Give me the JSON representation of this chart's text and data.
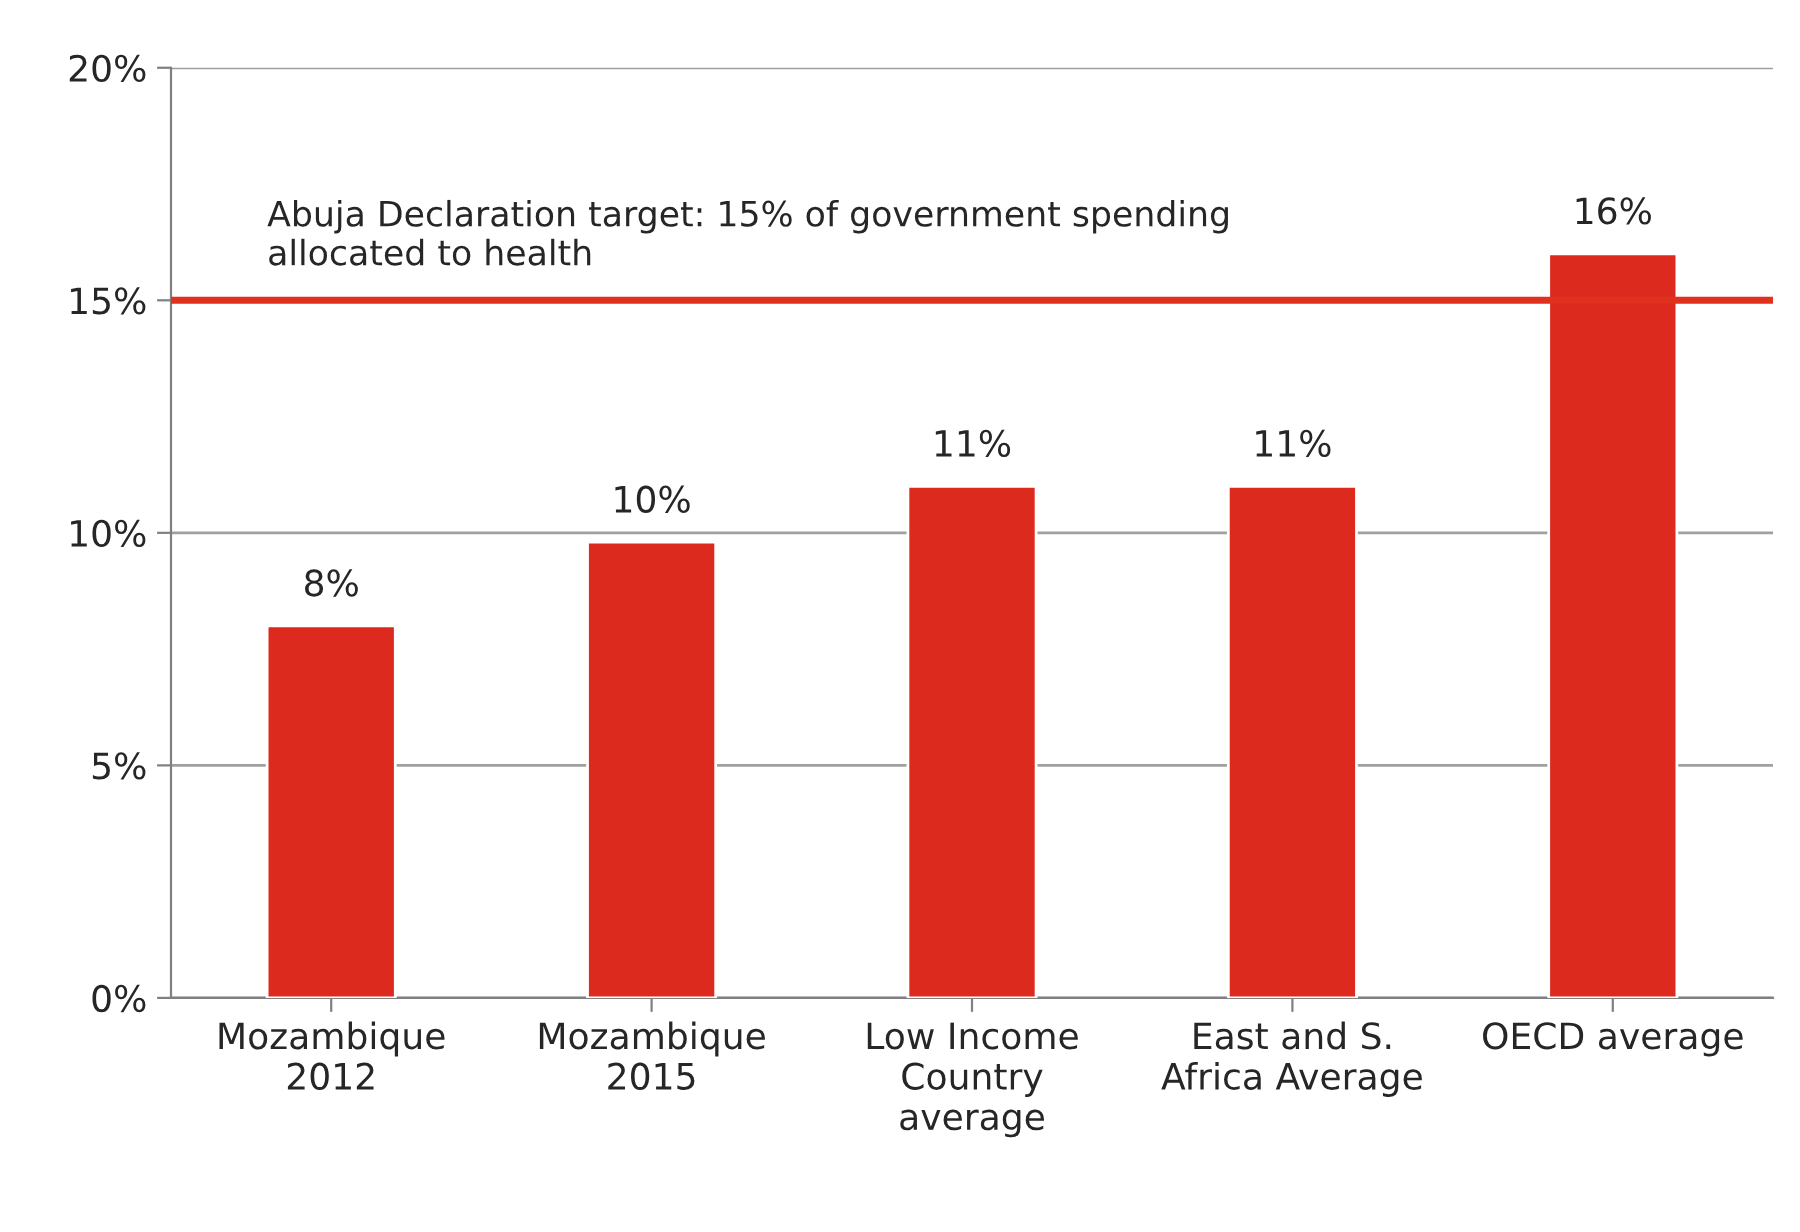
{
  "chart_data": {
    "type": "bar",
    "categories": [
      "Mozambique\n2012",
      "Mozambique\n2015",
      "Low Income\nCountry\naverage",
      "East and S.\nAfrica Average",
      "OECD average"
    ],
    "values": [
      8,
      9.8,
      11,
      11,
      16
    ],
    "value_labels": [
      "8%",
      "10%",
      "11%",
      "11%",
      "16%"
    ],
    "color": "#dc2a1f",
    "ylim": [
      0,
      20
    ],
    "yticks": [
      {
        "value": 0,
        "label": "0%"
      },
      {
        "value": 5,
        "label": "5%"
      },
      {
        "value": 10,
        "label": "10%"
      },
      {
        "value": 15,
        "label": "15%"
      },
      {
        "value": 20,
        "label": "20%"
      }
    ],
    "grid": "y",
    "ref_lines": [
      {
        "axis": "y",
        "value": 15,
        "label": "Abuja Declaration target: 15% of government spending\nallocated to health",
        "color": "#e0301e"
      }
    ]
  }
}
